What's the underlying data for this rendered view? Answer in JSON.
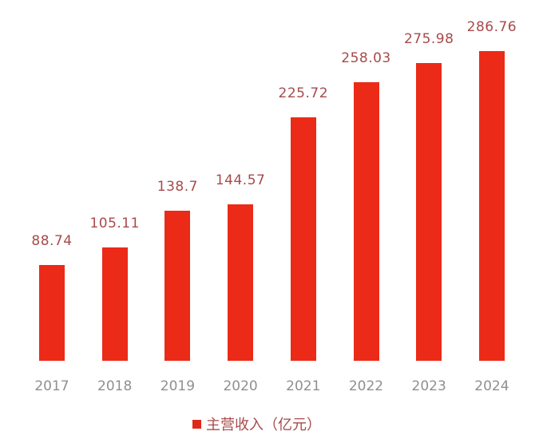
{
  "chart_data": {
    "type": "bar",
    "title": "",
    "xlabel": "",
    "ylabel": "",
    "categories": [
      "2017",
      "2018",
      "2019",
      "2020",
      "2021",
      "2022",
      "2023",
      "2024"
    ],
    "series": [
      {
        "name": "主营收入（亿元）",
        "color": "#ec2a18",
        "values": [
          88.74,
          105.11,
          138.7,
          144.57,
          225.72,
          258.03,
          275.98,
          286.76
        ]
      }
    ],
    "value_labels": [
      "88.74",
      "105.11",
      "138.7",
      "144.57",
      "225.72",
      "258.03",
      "275.98",
      "286.76"
    ],
    "ylim": [
      0,
      300
    ],
    "grid": false,
    "y_axis_visible": false,
    "legend_position": "bottom"
  },
  "legend": {
    "label": "主营收入（亿元）"
  }
}
